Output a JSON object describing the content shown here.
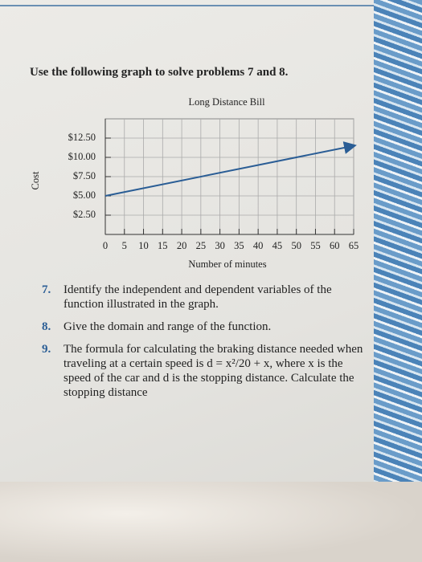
{
  "heading": "Use the following graph to solve problems 7 and 8.",
  "chart_data": {
    "type": "line",
    "title": "Long Distance Bill",
    "xlabel": "Number of minutes",
    "ylabel": "Cost",
    "series": [
      {
        "color": "#2a5d95",
        "x": [
          0,
          65
        ],
        "values": [
          5,
          11.5
        ]
      }
    ],
    "xlim": [
      0,
      65
    ],
    "xticks": [
      0,
      5,
      10,
      15,
      20,
      25,
      30,
      35,
      40,
      45,
      50,
      55,
      60,
      65
    ],
    "ylim": [
      0,
      15
    ],
    "yticks": [
      {
        "value": 2.5,
        "label": "$2.50"
      },
      {
        "value": 5,
        "label": "$5.00"
      },
      {
        "value": 7.5,
        "label": "$7.50"
      },
      {
        "value": 10,
        "label": "$10.00"
      },
      {
        "value": 12.5,
        "label": "$12.50"
      }
    ],
    "grid": true
  },
  "problems": [
    {
      "number": "7.",
      "text": "Identify the independent and dependent variables of the function illustrated in the graph."
    },
    {
      "number": "8.",
      "text": "Give the domain and range of the function."
    },
    {
      "number": "9.",
      "text": "The formula for calculating the braking distance needed when traveling at a certain speed is d = x²/20 + x, where x is the speed of the car and d is the stopping distance. Calculate the stopping distance"
    }
  ]
}
